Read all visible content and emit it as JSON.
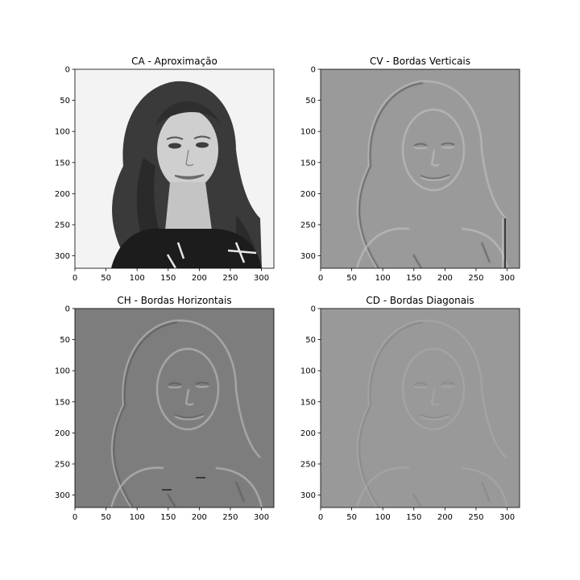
{
  "chart_data": [
    {
      "type": "image",
      "title": "CA - Aproximação",
      "image_description": "grayscale portrait photo of a smiling woman with long wavy dark hair on a white background",
      "xlim": [
        0,
        320
      ],
      "ylim": [
        320,
        0
      ],
      "xticks": [
        0,
        50,
        100,
        150,
        200,
        250,
        300
      ],
      "yticks": [
        0,
        50,
        100,
        150,
        200,
        250,
        300
      ],
      "background_gray": "#f3f3f3"
    },
    {
      "type": "image",
      "title": "CV - Bordas Verticais",
      "image_description": "vertical-detail wavelet coefficients: mid-gray field with faint embossed vertical edges of the portrait",
      "xlim": [
        0,
        320
      ],
      "ylim": [
        320,
        0
      ],
      "xticks": [
        0,
        50,
        100,
        150,
        200,
        250,
        300
      ],
      "yticks": [
        0,
        50,
        100,
        150,
        200,
        250,
        300
      ],
      "background_gray": "#9a9a9a"
    },
    {
      "type": "image",
      "title": "CH - Bordas Horizontais",
      "image_description": "horizontal-detail wavelet coefficients: gray field with embossed horizontal edges of face, eyes and mouth",
      "xlim": [
        0,
        320
      ],
      "ylim": [
        320,
        0
      ],
      "xticks": [
        0,
        50,
        100,
        150,
        200,
        250,
        300
      ],
      "yticks": [
        0,
        50,
        100,
        150,
        200,
        250,
        300
      ],
      "background_gray": "#7d7d7d"
    },
    {
      "type": "image",
      "title": "CD - Bordas Diagonais",
      "image_description": "diagonal-detail wavelet coefficients: mid-gray field with very faint diagonal edge texture",
      "xlim": [
        0,
        320
      ],
      "ylim": [
        320,
        0
      ],
      "xticks": [
        0,
        50,
        100,
        150,
        200,
        250,
        300
      ],
      "yticks": [
        0,
        50,
        100,
        150,
        200,
        250,
        300
      ],
      "background_gray": "#999999"
    }
  ]
}
